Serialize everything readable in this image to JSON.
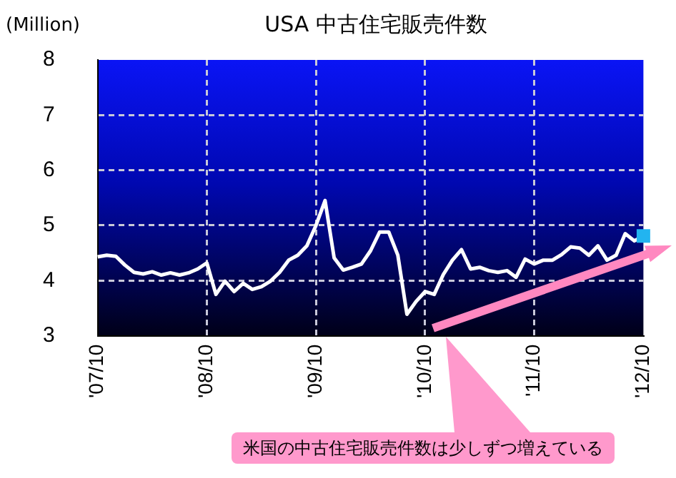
{
  "chart_data": {
    "type": "line",
    "title": "USA 中古住宅販売件数",
    "ylabel": "(Million)",
    "categories": [
      "'07/10",
      null,
      null,
      null,
      null,
      null,
      null,
      null,
      null,
      null,
      null,
      null,
      "'08/10",
      null,
      null,
      null,
      null,
      null,
      null,
      null,
      null,
      null,
      null,
      null,
      "'09/10",
      null,
      null,
      null,
      null,
      null,
      null,
      null,
      null,
      null,
      null,
      null,
      "'10/10",
      null,
      null,
      null,
      null,
      null,
      null,
      null,
      null,
      null,
      null,
      null,
      "'11/10",
      null,
      null,
      null,
      null,
      null,
      null,
      null,
      null,
      null,
      null,
      null,
      "'12/10"
    ],
    "series": [
      {
        "type": "line",
        "color": "#ffffff",
        "marker": "none",
        "line_style": "solid",
        "values": [
          4.43,
          4.46,
          4.44,
          4.28,
          4.15,
          4.12,
          4.16,
          4.1,
          4.14,
          4.1,
          4.14,
          4.21,
          4.32,
          3.75,
          3.99,
          3.8,
          3.95,
          3.84,
          3.89,
          3.99,
          4.15,
          4.37,
          4.46,
          4.63,
          5.0,
          5.45,
          4.41,
          4.19,
          4.24,
          4.3,
          4.54,
          4.88,
          4.88,
          4.46,
          3.39,
          3.62,
          3.8,
          3.75,
          4.11,
          4.37,
          4.56,
          4.21,
          4.24,
          4.18,
          4.15,
          4.18,
          4.06,
          4.39,
          4.3,
          4.37,
          4.37,
          4.47,
          4.61,
          4.59,
          4.46,
          4.63,
          4.37,
          4.46,
          4.85,
          4.72,
          4.81
        ]
      },
      {
        "type": "scatter",
        "color": "#22b4f0",
        "marker": "square",
        "x": [
          "'12/10"
        ],
        "values": [
          4.81
        ]
      }
    ],
    "ylim": [
      3,
      8
    ],
    "yticks": [
      3,
      4,
      5,
      6,
      7,
      8
    ],
    "grid": true,
    "legend": false,
    "annotations": [
      "米国の中古住宅販売件数は少しずつ増えている"
    ]
  }
}
